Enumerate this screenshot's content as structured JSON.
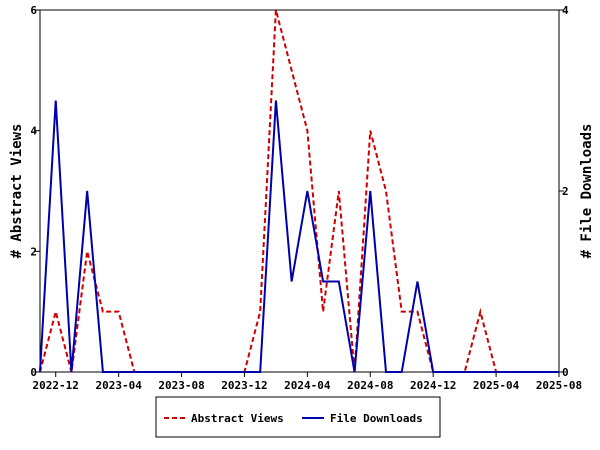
{
  "chart_data": {
    "type": "line",
    "x": [
      "2022-11",
      "2022-12",
      "2023-01",
      "2023-02",
      "2023-03",
      "2023-04",
      "2023-05",
      "2023-06",
      "2023-07",
      "2023-08",
      "2023-09",
      "2023-10",
      "2023-11",
      "2023-12",
      "2024-01",
      "2024-02",
      "2024-03",
      "2024-04",
      "2024-05",
      "2024-06",
      "2024-07",
      "2024-08",
      "2024-09",
      "2024-10",
      "2024-11",
      "2024-12",
      "2025-01",
      "2025-02",
      "2025-03",
      "2025-04",
      "2025-05",
      "2025-06",
      "2025-07",
      "2025-08"
    ],
    "x_ticks": [
      "2022-12",
      "2023-04",
      "2023-08",
      "2023-12",
      "2024-04",
      "2024-08",
      "2024-12",
      "2025-04",
      "2025-08"
    ],
    "series": [
      {
        "name": "Abstract Views",
        "axis": "left",
        "color": "#cc0000",
        "dash": true,
        "values": [
          0,
          1,
          0,
          2,
          1,
          1,
          0,
          0,
          0,
          0,
          0,
          0,
          0,
          0,
          1,
          6,
          5,
          4,
          1,
          3,
          0,
          4,
          3,
          1,
          1,
          0,
          0,
          0,
          1,
          0,
          0,
          0,
          0,
          0
        ]
      },
      {
        "name": "File Downloads",
        "axis": "right",
        "color": "#0000aa",
        "dash": false,
        "values": [
          0,
          3,
          0,
          2,
          0,
          0,
          0,
          0,
          0,
          0,
          0,
          0,
          0,
          0,
          0,
          3,
          1,
          2,
          1,
          1,
          0,
          2,
          0,
          0,
          1,
          0,
          0,
          0,
          0,
          0,
          0,
          0,
          0,
          0
        ]
      }
    ],
    "y_left": {
      "label": "# Abstract Views",
      "range": [
        0,
        6
      ],
      "ticks": [
        0,
        2,
        4,
        6
      ]
    },
    "y_right": {
      "label": "# File Downloads",
      "range": [
        0,
        4
      ],
      "ticks": [
        0,
        2,
        4
      ]
    },
    "legend": {
      "placement": "bottom-center"
    }
  }
}
